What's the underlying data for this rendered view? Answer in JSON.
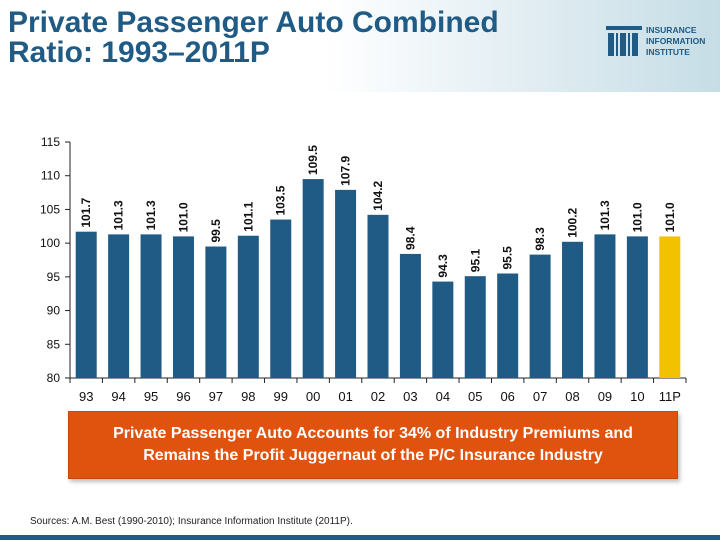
{
  "title": {
    "line1": "Private Passenger Auto Combined",
    "line2": "Ratio: 1993–2011P"
  },
  "logo": {
    "line1": "INSURANCE",
    "line2": "INFORMATION",
    "line3": "INSTITUTE"
  },
  "chart_data": {
    "type": "bar",
    "categories": [
      "93",
      "94",
      "95",
      "96",
      "97",
      "98",
      "99",
      "00",
      "01",
      "02",
      "03",
      "04",
      "05",
      "06",
      "07",
      "08",
      "09",
      "10",
      "11P"
    ],
    "values": [
      101.7,
      101.3,
      101.3,
      101.0,
      99.5,
      101.1,
      103.5,
      109.5,
      107.9,
      104.2,
      98.4,
      94.3,
      95.1,
      95.5,
      98.3,
      100.2,
      101.3,
      101.0,
      101.0
    ],
    "value_labels": [
      "101.7",
      "101.3",
      "101.3",
      "101.0",
      "99.5",
      "101.1",
      "103.5",
      "109.5",
      "107.9",
      "104.2",
      "98.4",
      "94.3",
      "95.1",
      "95.5",
      "98.3",
      "100.2",
      "101.3",
      "101.0",
      "101.0"
    ],
    "ylim": [
      80,
      115
    ],
    "yticks": [
      "80",
      "85",
      "90",
      "95",
      "100",
      "105",
      "110",
      "115"
    ],
    "xlabel": "",
    "ylabel": "",
    "grid": false,
    "colors": {
      "bar": "#1f5b84",
      "highlight": "#f2c200",
      "label": "#111111"
    },
    "highlight_index": 18
  },
  "callout": {
    "line1": "Private Passenger Auto Accounts for 34% of Industry Premiums and",
    "line2": "Remains the Profit Juggernaut of the P/C Insurance Industry"
  },
  "sources": "Sources: A.M. Best (1990-2010); Insurance Information Institute (2011P)."
}
